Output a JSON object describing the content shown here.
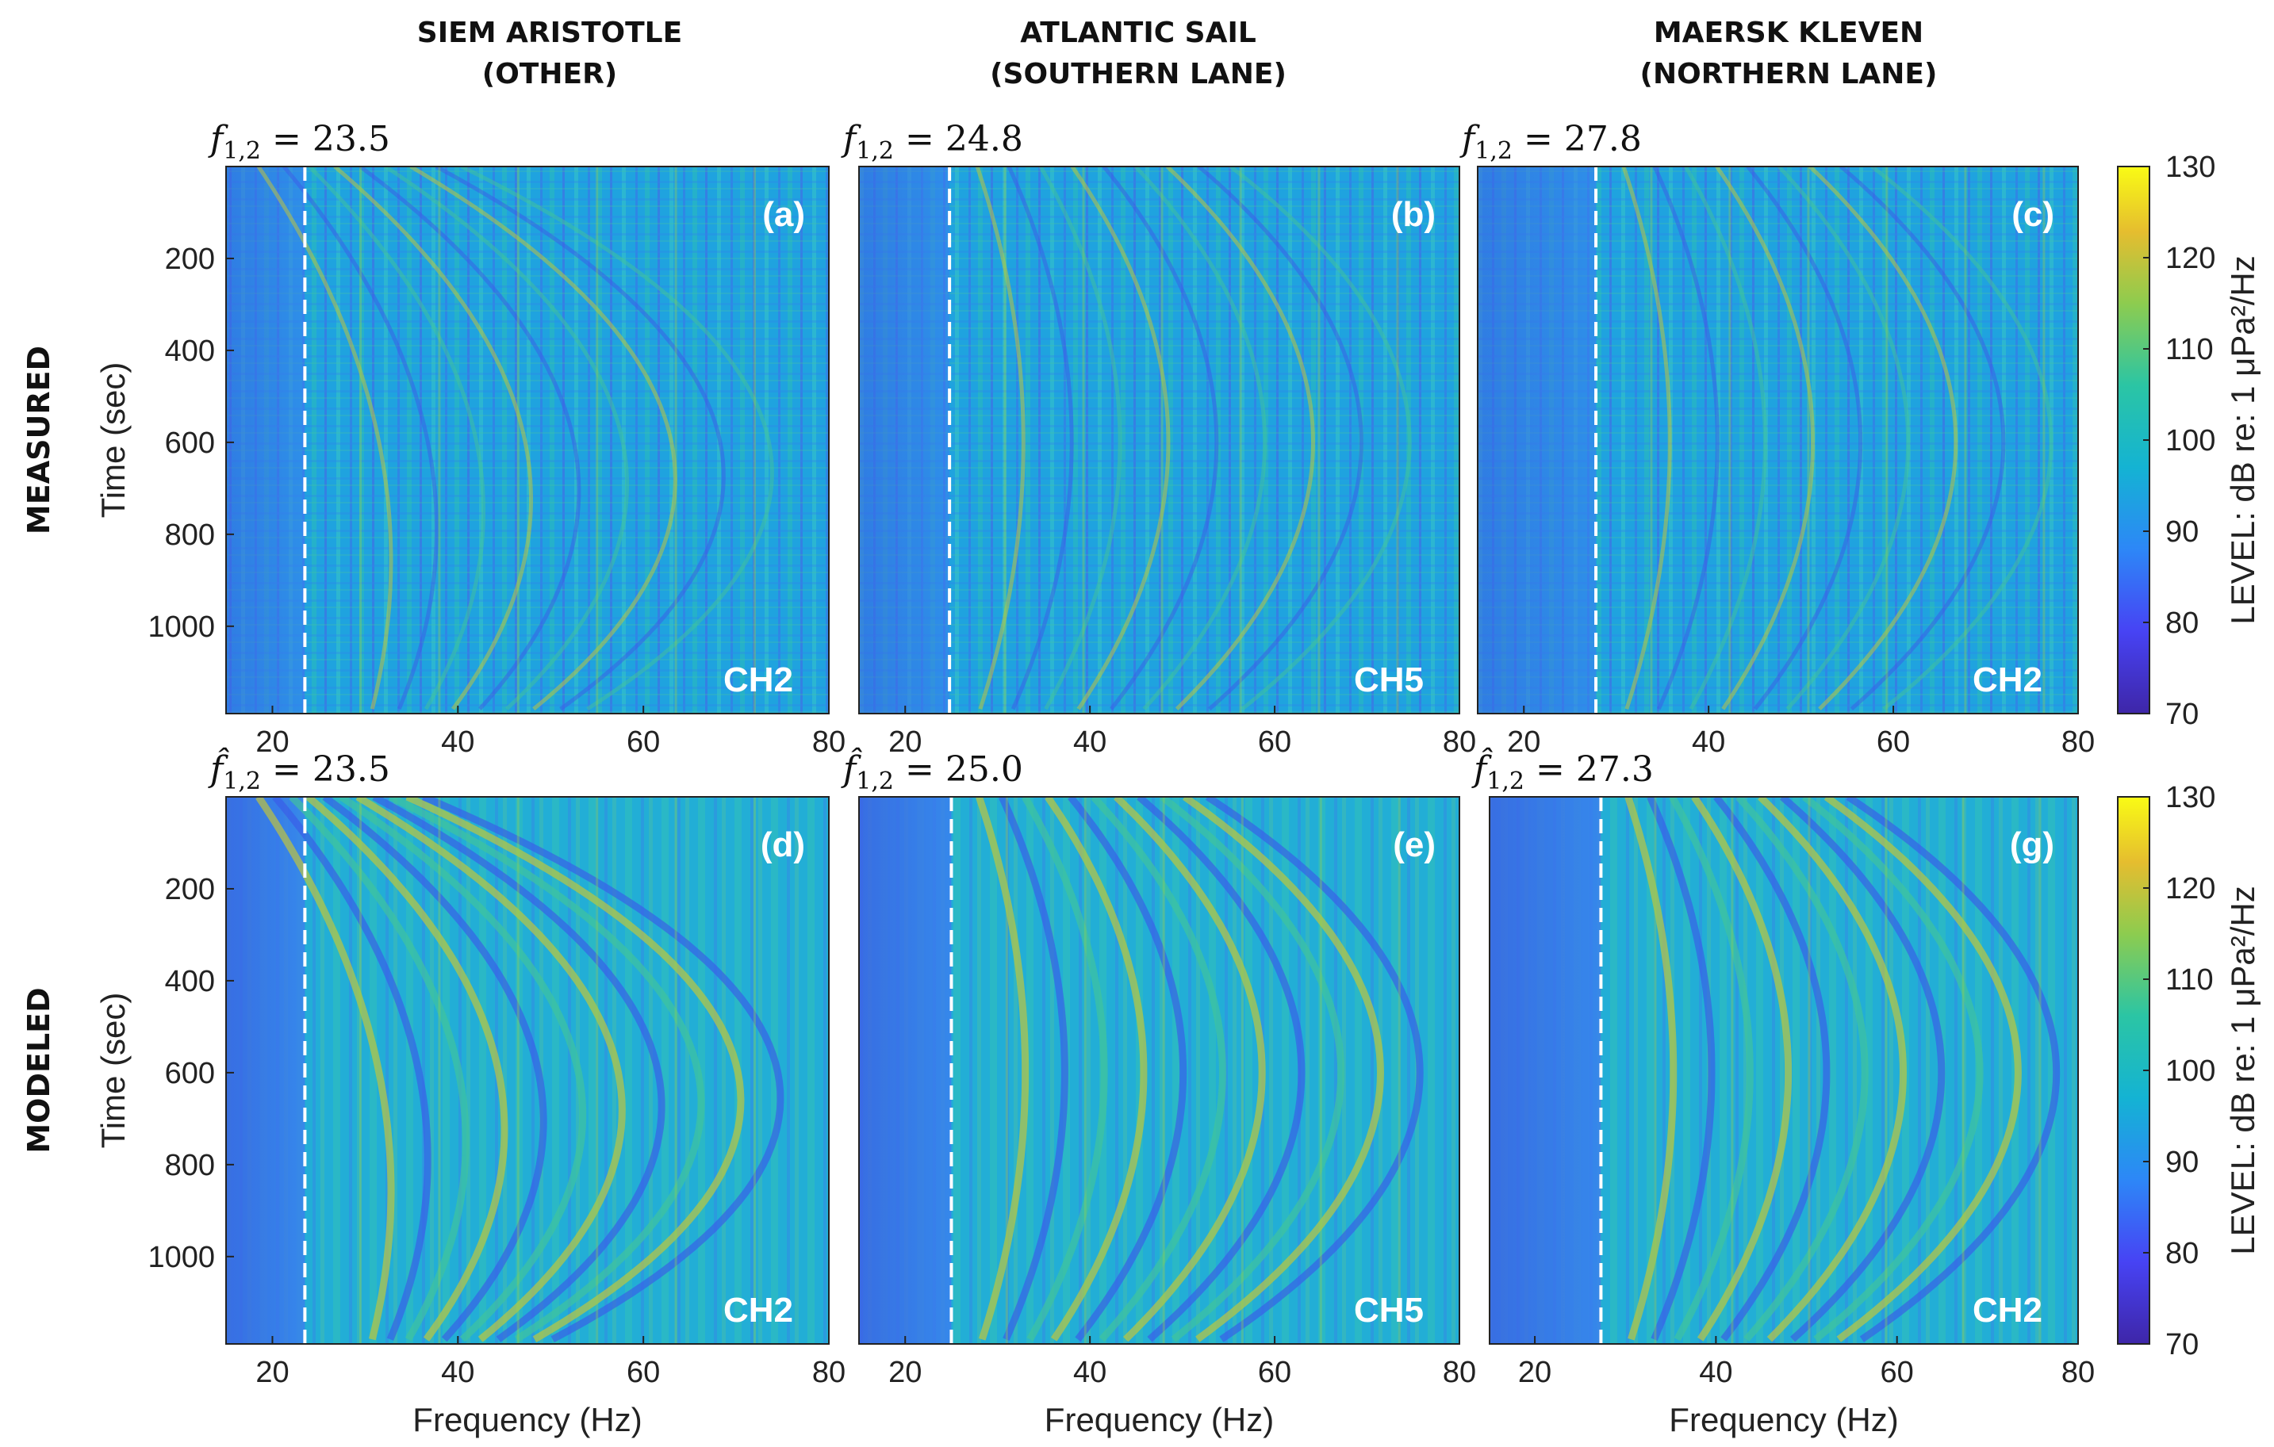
{
  "columns": [
    {
      "ship": "SIEM ARISTOTLE",
      "lane": "(OTHER)"
    },
    {
      "ship": "ATLANTIC SAIL",
      "lane": "(SOUTHERN LANE)"
    },
    {
      "ship": "MAERSK KLEVEN",
      "lane": "(NORTHERN LANE)"
    }
  ],
  "rows": [
    "MEASURED",
    "MODELED"
  ],
  "colorbar": {
    "label": "LEVEL: dB re: 1 μPa²/Hz",
    "min": 70,
    "max": 130,
    "ticks": [
      "130",
      "120",
      "110",
      "100",
      "90",
      "80",
      "70"
    ],
    "colormap": "parula"
  },
  "chart_data": [
    {
      "type": "heatmap",
      "panel": "(a)",
      "row": "MEASURED",
      "column": "SIEM ARISTOTLE (OTHER)",
      "channel": "CH2",
      "f12_label": "f_{1,2} = 23.5",
      "f12": 23.5,
      "xlabel": "",
      "ylabel": "Time (sec)",
      "xlim": [
        15,
        80
      ],
      "ylim": [
        0,
        1190
      ],
      "xticks": [
        "20",
        "40",
        "60",
        "80"
      ],
      "yticks": [
        "200",
        "400",
        "600",
        "800",
        "1000"
      ],
      "value_range_dB": [
        70,
        130
      ]
    },
    {
      "type": "heatmap",
      "panel": "(b)",
      "row": "MEASURED",
      "column": "ATLANTIC SAIL (SOUTHERN LANE)",
      "channel": "CH5",
      "f12_label": "f_{1,2} = 24.8",
      "f12": 24.8,
      "xlabel": "",
      "ylabel": "",
      "xlim": [
        15,
        80
      ],
      "ylim": [
        0,
        1190
      ],
      "xticks": [
        "20",
        "40",
        "60",
        "80"
      ],
      "value_range_dB": [
        70,
        130
      ]
    },
    {
      "type": "heatmap",
      "panel": "(c)",
      "row": "MEASURED",
      "column": "MAERSK KLEVEN (NORTHERN LANE)",
      "channel": "CH2",
      "f12_label": "f_{1,2} = 27.8",
      "f12": 27.8,
      "xlabel": "",
      "ylabel": "",
      "xlim": [
        15,
        80
      ],
      "ylim": [
        0,
        1190
      ],
      "xticks": [
        "20",
        "40",
        "60",
        "80"
      ],
      "value_range_dB": [
        70,
        130
      ]
    },
    {
      "type": "heatmap",
      "panel": "(d)",
      "row": "MODELED",
      "column": "SIEM ARISTOTLE (OTHER)",
      "channel": "CH2",
      "f12_label": "f̂_{1,2} = 23.5",
      "f12": 23.5,
      "xlabel": "Frequency (Hz)",
      "ylabel": "Time (sec)",
      "xlim": [
        15,
        80
      ],
      "ylim": [
        0,
        1190
      ],
      "xticks": [
        "20",
        "40",
        "60",
        "80"
      ],
      "yticks": [
        "200",
        "400",
        "600",
        "800",
        "1000"
      ],
      "value_range_dB": [
        70,
        130
      ]
    },
    {
      "type": "heatmap",
      "panel": "(e)",
      "row": "MODELED",
      "column": "ATLANTIC SAIL (SOUTHERN LANE)",
      "channel": "CH5",
      "f12_label": "f̂_{1,2} = 25.0",
      "f12": 25.0,
      "xlabel": "Frequency (Hz)",
      "ylabel": "",
      "xlim": [
        15,
        80
      ],
      "ylim": [
        0,
        1190
      ],
      "xticks": [
        "20",
        "40",
        "60",
        "80"
      ],
      "value_range_dB": [
        70,
        130
      ]
    },
    {
      "type": "heatmap",
      "panel": "(g)",
      "row": "MODELED",
      "column": "MAERSK KLEVEN (NORTHERN LANE)",
      "channel": "CH2",
      "f12_label": "f̂_{1,2} = 27.3",
      "f12": 27.3,
      "xlabel": "Frequency (Hz)",
      "ylabel": "",
      "xlim": [
        15,
        80
      ],
      "ylim": [
        0,
        1190
      ],
      "xticks": [
        "20",
        "40",
        "60",
        "80"
      ],
      "value_range_dB": [
        70,
        130
      ]
    }
  ]
}
